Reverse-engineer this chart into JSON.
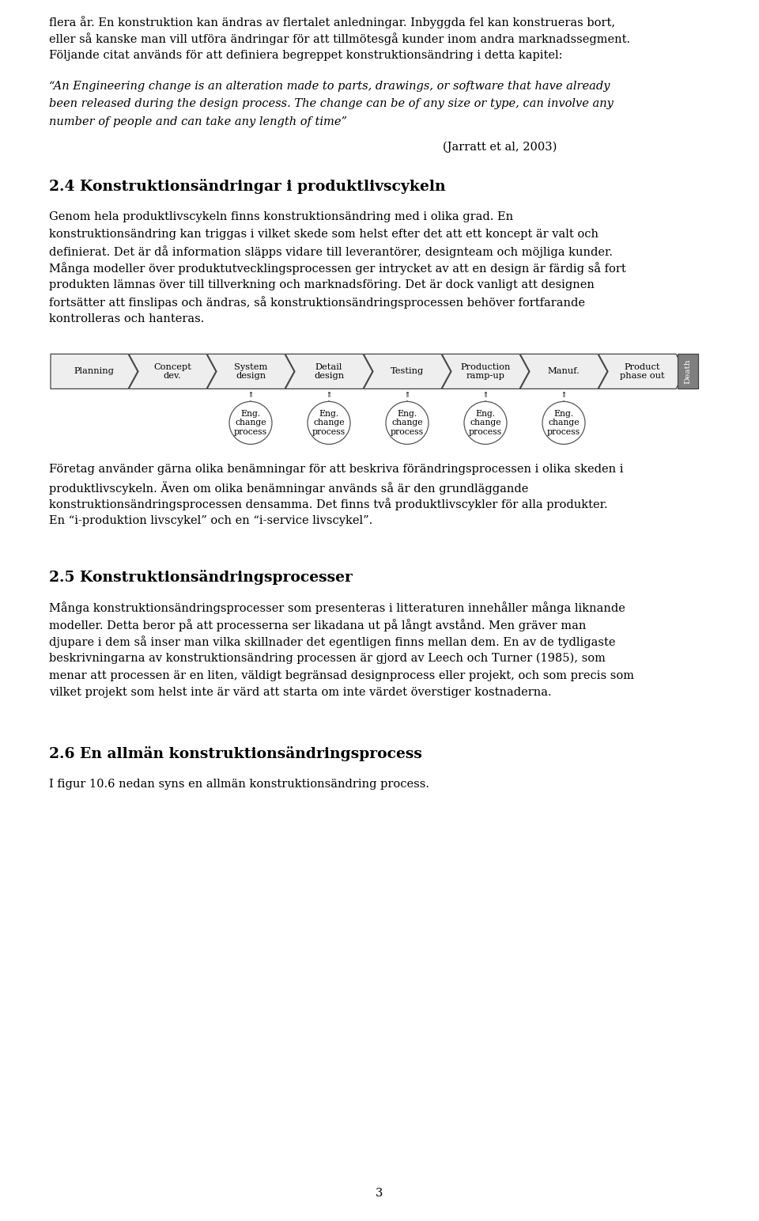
{
  "bg_color": "#ffffff",
  "text_color": "#000000",
  "font_family": "DejaVu Serif",
  "body_fontsize": 10.5,
  "heading_fontsize": 13.5,
  "line1": "flera år. En konstruktion kan ändras av flertalet anledningar. Inbyggda fel kan konstrueras bort,",
  "line2": "eller så kanske man vill utföra ändringar för att tillmötesgå kunder inom andra marknadssegment.",
  "line3": "Följande citat används för att definiera begreppet konstruktionsändring i detta kapitel:",
  "quote_line1": "“An Engineering change is an alteration made to parts, drawings, or software that have already",
  "quote_line2": "been released during the design process. The change can be of any size or type, can involve any",
  "quote_line3": "number of people and can take any length of time”",
  "citation": "(Jarratt et al, 2003)",
  "heading24": "2.4 Konstruktionsändringar i produktlivscykeln",
  "para24_lines": [
    "Genom hela produktlivscykeln finns konstruktionsändring med i olika grad. En",
    "konstruktionsändring kan triggas i vilket skede som helst efter det att ett koncept är valt och",
    "definierat. Det är då information släpps vidare till leverantörer, designteam och möjliga kunder.",
    "Många modeller över produktutvecklingsprocessen ger intrycket av att en design är färdig så fort",
    "produkten lämnas över till tillverkning och marknadsföring. Det är dock vanligt att designen",
    "fortsätter att finslipas och ändras, så konstruktionsändringsprocessen behöver fortfarande",
    "kontrolleras och hanteras."
  ],
  "diagram_stages": [
    "Planning",
    "Concept\ndev.",
    "System\ndesign",
    "Detail\ndesign",
    "Testing",
    "Production\nramp-up",
    "Manuf.",
    "Product\nphase out"
  ],
  "death_label": "Death",
  "eng_change_label": "Eng.\nchange\nprocess",
  "eng_change_positions": [
    2,
    3,
    4,
    5,
    6
  ],
  "para_after_diagram_lines": [
    "Företag använder gärna olika benämningar för att beskriva förändringsprocessen i olika skeden i",
    "produktlivscykeln. Även om olika benämningar används så är den grundläggande",
    "konstruktionsändringsprocessen densamma. Det finns två produktlivscykler för alla produkter.",
    "En “i-produktion livscykel” och en “i-service livscykel”."
  ],
  "heading25": "2.5 Konstruktionsändringsprocesser",
  "para25_lines": [
    "Många konstruktionsändringsprocesser som presenteras i litteraturen innehåller många liknande",
    "modeller. Detta beror på att processerna ser likadana ut på långt avstånd. Men gräver man",
    "djupare i dem så inser man vilka skillnader det egentligen finns mellan dem. En av de tydligaste",
    "beskrivningarna av konstruktionsändring processen är gjord av Leech och Turner (1985), som",
    "menar att processen är en liten, väldigt begränsad designprocess eller projekt, och som precis som",
    "vilket projekt som helst inte är värd att starta om inte värdet överstiger kostnaderna."
  ],
  "heading26": "2.6 En allmän konstruktionsändringsprocess",
  "para26_line1": "I figur 10.6 nedan syns en allmän konstruktionsändring process.",
  "page_number": "3"
}
